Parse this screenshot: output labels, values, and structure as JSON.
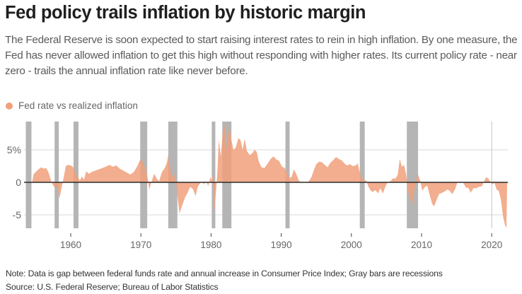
{
  "header": {
    "title": "Fed policy trails inflation by historic margin",
    "subtitle": "The Federal Reserve is soon expected to start raising interest rates to rein in high inflation. By one measure, the Fed has never allowed inflation to get this high without responding with higher rates. Its current policy rate - near zero - trails the annual inflation rate like never before."
  },
  "footer": {
    "note": "Note: Data is gap between federal funds rate and annual increase in Consumer Price Index; Gray bars are recessions",
    "source": "Source: U.S. Federal Reserve; Bureau of Labor Statistics"
  },
  "colors": {
    "series": "#f0a07a",
    "recession": "#b5b5b5",
    "zero_line": "#2b2b2b",
    "grid": "#d9d9d9",
    "tick_label": "#666666"
  },
  "chart_data": {
    "type": "area",
    "title": "Fed policy trails inflation by historic margin",
    "xlabel": "",
    "ylabel": "",
    "xlim": [
      1953.4,
      2022.4
    ],
    "ylim": [
      -7,
      9.3
    ],
    "grid": true,
    "legend": {
      "position": "top-left",
      "entries": [
        "Fed rate vs realized inflation"
      ]
    },
    "x_ticks": [
      1960,
      1970,
      1980,
      1990,
      2000,
      2010,
      2020
    ],
    "x_tick_labels": [
      "1960",
      "1970",
      "1980",
      "1990",
      "2000",
      "2010",
      "2020"
    ],
    "y_ticks": [
      5,
      0,
      -5
    ],
    "y_tick_labels": [
      "5%",
      "0",
      "-5"
    ],
    "reference_lines": [
      {
        "axis": "x",
        "value": 2020
      }
    ],
    "recessions": [
      [
        1953.6,
        1954.4
      ],
      [
        1957.7,
        1958.3
      ],
      [
        1960.4,
        1961.1
      ],
      [
        1969.9,
        1970.9
      ],
      [
        1973.9,
        1975.2
      ],
      [
        1980.1,
        1980.6
      ],
      [
        1981.6,
        1982.9
      ],
      [
        1990.6,
        1991.2
      ],
      [
        2001.2,
        2001.9
      ],
      [
        2007.9,
        2009.5
      ]
    ],
    "series": [
      {
        "name": "Fed rate vs realized inflation",
        "points": [
          [
            1954.5,
            0.0
          ],
          [
            1954.7,
            1.2
          ],
          [
            1955.0,
            1.6
          ],
          [
            1955.4,
            2.0
          ],
          [
            1955.8,
            2.3
          ],
          [
            1956.2,
            2.1
          ],
          [
            1956.5,
            2.2
          ],
          [
            1956.8,
            1.6
          ],
          [
            1957.1,
            0.6
          ],
          [
            1957.4,
            -0.3
          ],
          [
            1957.7,
            -0.8
          ],
          [
            1958.0,
            -0.5
          ],
          [
            1958.2,
            -1.3
          ],
          [
            1958.4,
            -2.5
          ],
          [
            1958.7,
            -0.8
          ],
          [
            1959.0,
            0.8
          ],
          [
            1959.3,
            2.5
          ],
          [
            1959.6,
            2.7
          ],
          [
            1960.0,
            2.6
          ],
          [
            1960.3,
            2.4
          ],
          [
            1960.7,
            1.5
          ],
          [
            1961.0,
            0.8
          ],
          [
            1961.3,
            0.3
          ],
          [
            1961.6,
            0.9
          ],
          [
            1961.9,
            0.4
          ],
          [
            1962.2,
            1.7
          ],
          [
            1962.6,
            1.3
          ],
          [
            1963.0,
            1.6
          ],
          [
            1963.5,
            1.8
          ],
          [
            1964.0,
            2.0
          ],
          [
            1964.5,
            2.2
          ],
          [
            1965.0,
            2.4
          ],
          [
            1965.5,
            2.7
          ],
          [
            1966.0,
            2.4
          ],
          [
            1966.5,
            2.6
          ],
          [
            1967.0,
            2.1
          ],
          [
            1967.5,
            1.8
          ],
          [
            1968.0,
            1.5
          ],
          [
            1968.5,
            1.2
          ],
          [
            1969.0,
            1.6
          ],
          [
            1969.5,
            2.5
          ],
          [
            1969.9,
            3.5
          ],
          [
            1970.2,
            3.2
          ],
          [
            1970.6,
            2.2
          ],
          [
            1971.0,
            0.5
          ],
          [
            1971.2,
            -1.1
          ],
          [
            1971.5,
            0.1
          ],
          [
            1971.9,
            1.3
          ],
          [
            1972.3,
            0.5
          ],
          [
            1972.6,
            0.2
          ],
          [
            1973.0,
            1.6
          ],
          [
            1973.4,
            2.2
          ],
          [
            1973.7,
            3.0
          ],
          [
            1973.9,
            4.2
          ],
          [
            1974.2,
            1.9
          ],
          [
            1974.5,
            0.6
          ],
          [
            1974.8,
            1.3
          ],
          [
            1975.0,
            0.4
          ],
          [
            1975.2,
            -2.0
          ],
          [
            1975.5,
            -4.8
          ],
          [
            1975.9,
            -3.5
          ],
          [
            1976.3,
            -2.3
          ],
          [
            1976.7,
            -1.5
          ],
          [
            1977.0,
            -0.7
          ],
          [
            1977.4,
            -1.0
          ],
          [
            1977.8,
            -2.1
          ],
          [
            1978.1,
            -0.7
          ],
          [
            1978.4,
            -0.2
          ],
          [
            1978.7,
            0.1
          ],
          [
            1979.0,
            -0.3
          ],
          [
            1979.3,
            0.2
          ],
          [
            1979.6,
            -0.6
          ],
          [
            1979.9,
            0.8
          ],
          [
            1980.1,
            0.3
          ],
          [
            1980.3,
            1.3
          ],
          [
            1980.5,
            -4.6
          ],
          [
            1980.7,
            -1.5
          ],
          [
            1980.9,
            1.5
          ],
          [
            1981.1,
            6.5
          ],
          [
            1981.4,
            4.0
          ],
          [
            1981.6,
            7.0
          ],
          [
            1981.8,
            9.2
          ],
          [
            1982.0,
            8.0
          ],
          [
            1982.2,
            5.0
          ],
          [
            1982.4,
            7.2
          ],
          [
            1982.6,
            8.5
          ],
          [
            1982.9,
            6.5
          ],
          [
            1983.2,
            5.0
          ],
          [
            1983.5,
            5.3
          ],
          [
            1983.9,
            6.8
          ],
          [
            1984.2,
            6.5
          ],
          [
            1984.5,
            5.0
          ],
          [
            1984.8,
            6.7
          ],
          [
            1985.1,
            4.8
          ],
          [
            1985.5,
            4.2
          ],
          [
            1985.9,
            4.5
          ],
          [
            1986.2,
            5.0
          ],
          [
            1986.5,
            4.7
          ],
          [
            1986.8,
            3.2
          ],
          [
            1987.2,
            2.3
          ],
          [
            1987.6,
            2.2
          ],
          [
            1988.0,
            2.8
          ],
          [
            1988.5,
            3.6
          ],
          [
            1988.9,
            4.0
          ],
          [
            1989.3,
            3.5
          ],
          [
            1989.7,
            3.3
          ],
          [
            1990.1,
            2.4
          ],
          [
            1990.5,
            2.2
          ],
          [
            1990.9,
            1.3
          ],
          [
            1991.2,
            0.6
          ],
          [
            1991.5,
            0.9
          ],
          [
            1991.8,
            2.0
          ],
          [
            1992.1,
            1.4
          ],
          [
            1992.5,
            0.3
          ],
          [
            1992.9,
            -0.1
          ],
          [
            1993.3,
            0.0
          ],
          [
            1993.7,
            -0.1
          ],
          [
            1994.0,
            0.3
          ],
          [
            1994.3,
            0.8
          ],
          [
            1994.7,
            2.0
          ],
          [
            1995.0,
            2.8
          ],
          [
            1995.4,
            3.2
          ],
          [
            1995.8,
            3.1
          ],
          [
            1996.2,
            2.7
          ],
          [
            1996.6,
            2.3
          ],
          [
            1997.0,
            3.0
          ],
          [
            1997.4,
            3.4
          ],
          [
            1997.8,
            3.9
          ],
          [
            1998.2,
            3.6
          ],
          [
            1998.6,
            3.4
          ],
          [
            1999.0,
            2.9
          ],
          [
            1999.4,
            2.6
          ],
          [
            1999.8,
            2.8
          ],
          [
            2000.2,
            2.5
          ],
          [
            2000.6,
            2.6
          ],
          [
            2000.9,
            2.9
          ],
          [
            2001.2,
            1.5
          ],
          [
            2001.5,
            0.6
          ],
          [
            2001.8,
            0.3
          ],
          [
            2002.1,
            0.3
          ],
          [
            2002.4,
            -0.6
          ],
          [
            2002.7,
            -1.2
          ],
          [
            2003.0,
            -1.5
          ],
          [
            2003.4,
            -1.2
          ],
          [
            2003.8,
            -1.7
          ],
          [
            2004.1,
            -0.9
          ],
          [
            2004.5,
            -1.7
          ],
          [
            2004.9,
            -0.5
          ],
          [
            2005.2,
            0.0
          ],
          [
            2005.6,
            0.2
          ],
          [
            2005.9,
            0.6
          ],
          [
            2006.3,
            0.6
          ],
          [
            2006.6,
            1.2
          ],
          [
            2006.9,
            3.6
          ],
          [
            2007.2,
            2.4
          ],
          [
            2007.5,
            2.7
          ],
          [
            2007.8,
            1.2
          ],
          [
            2008.1,
            -1.4
          ],
          [
            2008.4,
            -2.5
          ],
          [
            2008.7,
            -3.5
          ],
          [
            2009.0,
            -1.0
          ],
          [
            2009.3,
            0.6
          ],
          [
            2009.5,
            1.2
          ],
          [
            2009.8,
            0.3
          ],
          [
            2010.1,
            -1.3
          ],
          [
            2010.4,
            -0.8
          ],
          [
            2010.8,
            -0.5
          ],
          [
            2011.1,
            -1.7
          ],
          [
            2011.5,
            -3.3
          ],
          [
            2011.8,
            -3.7
          ],
          [
            2012.1,
            -2.8
          ],
          [
            2012.5,
            -1.8
          ],
          [
            2012.9,
            -1.6
          ],
          [
            2013.3,
            -1.4
          ],
          [
            2013.7,
            -1.1
          ],
          [
            2014.0,
            -1.3
          ],
          [
            2014.4,
            -1.8
          ],
          [
            2014.8,
            -1.0
          ],
          [
            2015.1,
            0.0
          ],
          [
            2015.5,
            -0.1
          ],
          [
            2015.9,
            0.0
          ],
          [
            2016.3,
            -0.8
          ],
          [
            2016.7,
            -0.9
          ],
          [
            2017.0,
            -1.6
          ],
          [
            2017.4,
            -0.9
          ],
          [
            2017.8,
            -0.9
          ],
          [
            2018.2,
            -0.7
          ],
          [
            2018.6,
            -0.6
          ],
          [
            2018.9,
            0.1
          ],
          [
            2019.2,
            0.8
          ],
          [
            2019.5,
            0.6
          ],
          [
            2019.8,
            0.1
          ],
          [
            2020.1,
            -0.3
          ],
          [
            2020.4,
            -0.1
          ],
          [
            2020.7,
            -1.1
          ],
          [
            2021.0,
            -1.3
          ],
          [
            2021.3,
            -2.6
          ],
          [
            2021.6,
            -5.2
          ],
          [
            2021.9,
            -6.6
          ],
          [
            2022.1,
            -7.0
          ],
          [
            2022.2,
            0.0
          ]
        ]
      }
    ]
  }
}
